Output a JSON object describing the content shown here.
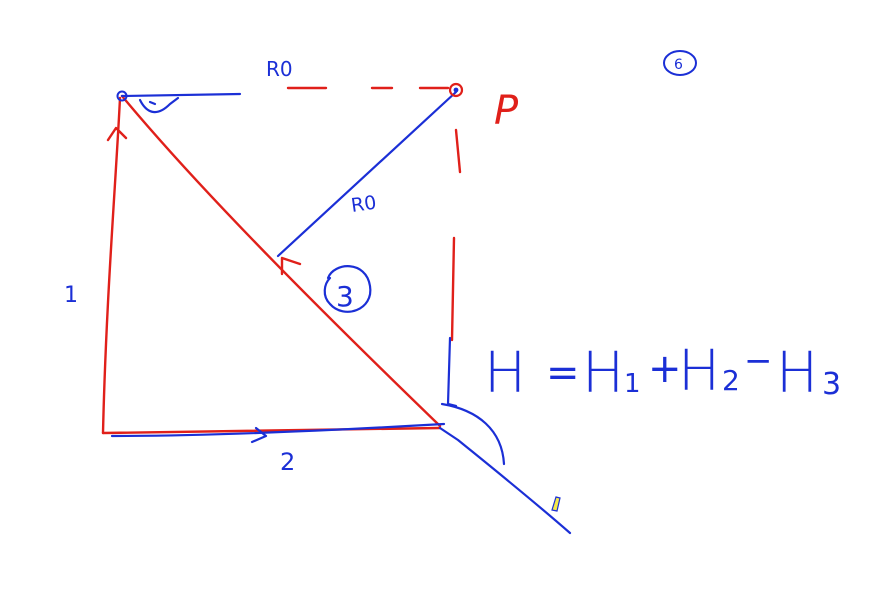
{
  "colors": {
    "background": "#ffffff",
    "blue_ink": "#1b2fd6",
    "red_ink": "#e0201a",
    "highlighter": "#f3e84a"
  },
  "labels": {
    "r0_top": "R0",
    "r0_diagonal": "R0",
    "point_p": "P",
    "segment_1": "1",
    "segment_2": "2",
    "segment_3": "3",
    "corner_mark": "6"
  },
  "formula": {
    "h": "H",
    "equals": "=",
    "h1_base": "H",
    "h1_sub": "1",
    "plus": "+",
    "h2_base": "H",
    "h2_sub": "2",
    "minus": "−",
    "h3_base": "H",
    "h3_sub": "3"
  }
}
